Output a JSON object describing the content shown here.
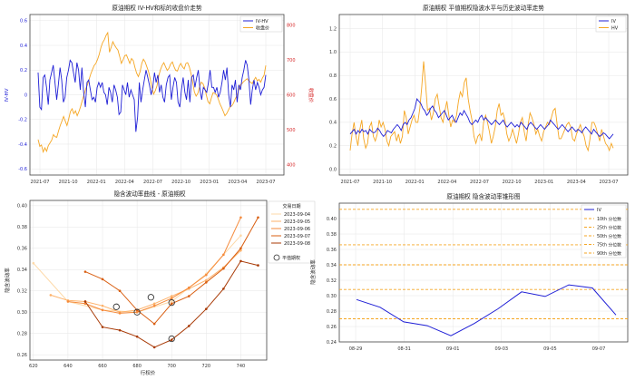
{
  "colors": {
    "blue": "#1f1fd6",
    "orange": "#f5a623",
    "red_axis": "#d62728",
    "grid": "#e6e6e6",
    "smile": [
      "#fdd9a8",
      "#fdb26a",
      "#f58a3b",
      "#d95f12",
      "#a83a06"
    ]
  },
  "chart_data": [
    {
      "type": "line",
      "title": "原油期权 IV-HV和标的收盘价走势",
      "xticks": [
        "2021-07",
        "2021-10",
        "2022-01",
        "2022-04",
        "2022-07",
        "2022-10",
        "2023-01",
        "2023-04",
        "2023-07"
      ],
      "ylabel": "IV-HV",
      "y2label": "收盘价",
      "ylim": [
        -0.65,
        0.65
      ],
      "yticks": [
        "-0.6",
        "-0.4",
        "-0.2",
        "0",
        "0.2",
        "0.4",
        "0.6"
      ],
      "y2lim": [
        370,
        830
      ],
      "y2ticks": [
        "400",
        "500",
        "600",
        "700",
        "800"
      ],
      "legend": [
        "IV-HV",
        "收盘价"
      ],
      "series": [
        {
          "name": "IV-HV",
          "values": [
            0.18,
            -0.1,
            -0.12,
            0.14,
            0.16,
            0.06,
            -0.08,
            0.12,
            0.18,
            0.24,
            0.1,
            -0.04,
            0.08,
            0.22,
            0.12,
            -0.06,
            -0.02,
            0.14,
            0.2,
            0.28,
            0.26,
            0.18,
            0.1,
            0.26,
            0.2,
            0.04,
            0.22,
            0.02,
            -0.1,
            0.1,
            0.12,
            0.04,
            -0.04,
            -0.02,
            -0.06,
            0.06,
            0.1,
            0.06,
            0.1,
            0.02,
            0.0,
            -0.08,
            0.06,
            0.02,
            -0.06,
            0.08,
            0.04,
            -0.02,
            -0.16,
            -0.14,
            0.08,
            0.04,
            0.0,
            0.1,
            -0.02,
            0.04,
            0.0,
            -0.04,
            -0.3,
            -0.18,
            0.1,
            -0.06,
            0.04,
            0.12,
            0.2,
            0.14,
            0.08,
            0.0,
            0.06,
            0.18,
            0.1,
            0.16,
            0.02,
            0.08,
            -0.02,
            -0.06,
            0.08,
            0.14,
            0.16,
            -0.04,
            0.06,
            0.14,
            0.1,
            -0.06,
            -0.1,
            0.04,
            0.14,
            0.02,
            -0.04,
            0.12,
            -0.06,
            0.14,
            0.16,
            0.06,
            0.14,
            0.2,
            0.04,
            -0.04,
            0.06,
            0.04,
            0.02,
            0.1,
            0.2,
            0.06,
            0.06,
            0.02,
            0.06,
            -0.02,
            0.02,
            0.1,
            0.2,
            0.12,
            0.22,
            0.0,
            -0.1,
            0.08,
            0.04,
            0.12,
            -0.06,
            0.08,
            0.04,
            0.14,
            0.2,
            0.28,
            0.24,
            0.12,
            -0.08,
            0.04,
            0.12,
            0.04,
            0.1,
            0.06,
            0.0,
            0.04,
            0.06,
            0.16
          ]
        },
        {
          "name": "收盘价",
          "values": [
            472,
            452,
            456,
            436,
            448,
            438,
            454,
            462,
            470,
            486,
            480,
            478,
            496,
            512,
            524,
            538,
            524,
            512,
            530,
            552,
            560,
            546,
            554,
            540,
            552,
            566,
            584,
            600,
            616,
            628,
            644,
            660,
            672,
            684,
            690,
            702,
            716,
            736,
            750,
            758,
            770,
            778,
            722,
            736,
            752,
            742,
            734,
            728,
            710,
            690,
            700,
            712,
            714,
            702,
            690,
            704,
            698,
            678,
            662,
            652,
            666,
            690,
            702,
            694,
            680,
            666,
            646,
            620,
            602,
            612,
            626,
            654,
            672,
            684,
            692,
            680,
            670,
            676,
            688,
            694,
            680,
            670,
            668,
            682,
            690,
            680,
            674,
            690,
            692,
            680,
            660,
            634,
            608,
            596,
            604,
            622,
            636,
            632,
            620,
            600,
            580,
            574,
            592,
            606,
            604,
            600,
            588,
            574,
            564,
            552,
            540,
            546,
            556,
            566,
            568,
            576,
            588,
            598,
            612,
            628,
            632,
            638,
            642,
            646,
            640,
            636,
            632,
            642,
            650,
            640,
            644,
            636,
            648,
            656,
            684
          ]
        }
      ]
    },
    {
      "type": "line",
      "title": "原油期权 平值期权隐波水平与历史波动率走势",
      "xticks": [
        "2021-07",
        "2021-10",
        "2022-01",
        "2022-04",
        "2022-07",
        "2022-10",
        "2023-01",
        "2023-04",
        "2023-07"
      ],
      "ylim": [
        -0.05,
        1.32
      ],
      "yticks": [
        "0.0",
        "0.2",
        "0.4",
        "0.6",
        "0.8",
        "1.0",
        "1.2"
      ],
      "legend": [
        "IV",
        "HV"
      ],
      "series": [
        {
          "name": "IV",
          "values": [
            0.3,
            0.32,
            0.34,
            0.3,
            0.33,
            0.31,
            0.34,
            0.32,
            0.33,
            0.3,
            0.34,
            0.32,
            0.31,
            0.32,
            0.35,
            0.33,
            0.3,
            0.28,
            0.3,
            0.33,
            0.32,
            0.31,
            0.34,
            0.36,
            0.38,
            0.36,
            0.33,
            0.38,
            0.4,
            0.38,
            0.42,
            0.44,
            0.48,
            0.52,
            0.6,
            0.58,
            0.56,
            0.52,
            0.5,
            0.46,
            0.48,
            0.52,
            0.54,
            0.5,
            0.48,
            0.44,
            0.46,
            0.48,
            0.5,
            0.46,
            0.42,
            0.44,
            0.46,
            0.42,
            0.4,
            0.44,
            0.48,
            0.46,
            0.5,
            0.47,
            0.44,
            0.4,
            0.38,
            0.4,
            0.42,
            0.4,
            0.44,
            0.46,
            0.42,
            0.44,
            0.42,
            0.4,
            0.38,
            0.4,
            0.42,
            0.4,
            0.38,
            0.4,
            0.42,
            0.38,
            0.36,
            0.38,
            0.4,
            0.38,
            0.36,
            0.38,
            0.36,
            0.4,
            0.38,
            0.36,
            0.34,
            0.38,
            0.4,
            0.38,
            0.36,
            0.34,
            0.36,
            0.38,
            0.36,
            0.34,
            0.36,
            0.38,
            0.42,
            0.4,
            0.38,
            0.36,
            0.34,
            0.36,
            0.38,
            0.36,
            0.34,
            0.32,
            0.34,
            0.36,
            0.34,
            0.32,
            0.34,
            0.33,
            0.31,
            0.34,
            0.36,
            0.34,
            0.32,
            0.3,
            0.34,
            0.32,
            0.3,
            0.28,
            0.29,
            0.31,
            0.3,
            0.28,
            0.26,
            0.28,
            0.3
          ]
        },
        {
          "name": "HV",
          "values": [
            0.16,
            0.3,
            0.4,
            0.28,
            0.2,
            0.34,
            0.42,
            0.26,
            0.18,
            0.22,
            0.36,
            0.4,
            0.28,
            0.24,
            0.3,
            0.42,
            0.36,
            0.4,
            0.34,
            0.24,
            0.2,
            0.28,
            0.3,
            0.32,
            0.24,
            0.3,
            0.22,
            0.28,
            0.5,
            0.44,
            0.3,
            0.36,
            0.42,
            0.46,
            0.4,
            0.4,
            0.52,
            0.7,
            0.92,
            0.72,
            0.5,
            0.52,
            0.42,
            0.48,
            0.6,
            0.64,
            0.54,
            0.44,
            0.4,
            0.5,
            0.58,
            0.46,
            0.36,
            0.42,
            0.4,
            0.46,
            0.58,
            0.66,
            0.62,
            0.74,
            0.78,
            0.6,
            0.5,
            0.42,
            0.28,
            0.22,
            0.28,
            0.3,
            0.24,
            0.4,
            0.46,
            0.4,
            0.32,
            0.22,
            0.28,
            0.36,
            0.5,
            0.56,
            0.46,
            0.48,
            0.42,
            0.3,
            0.24,
            0.28,
            0.34,
            0.28,
            0.22,
            0.3,
            0.4,
            0.44,
            0.32,
            0.24,
            0.38,
            0.48,
            0.44,
            0.38,
            0.3,
            0.34,
            0.28,
            0.24,
            0.32,
            0.36,
            0.4,
            0.38,
            0.44,
            0.5,
            0.52,
            0.38,
            0.26,
            0.26,
            0.3,
            0.34,
            0.38,
            0.4,
            0.36,
            0.26,
            0.24,
            0.3,
            0.34,
            0.38,
            0.32,
            0.28,
            0.2,
            0.16,
            0.26,
            0.4,
            0.4,
            0.36,
            0.3,
            0.24,
            0.34,
            0.28,
            0.22,
            0.2,
            0.16,
            0.22,
            0.18
          ]
        }
      ]
    },
    {
      "type": "line",
      "title": "隐含波动率曲线 - 原油期权",
      "xlabel": "行权价",
      "ylabel": "隐含波动率",
      "xlim": [
        618,
        755
      ],
      "xticks": [
        620,
        640,
        660,
        680,
        700,
        720,
        740
      ],
      "ylim": [
        0.255,
        0.405
      ],
      "yticks": [
        0.26,
        0.28,
        0.3,
        0.32,
        0.34,
        0.36,
        0.38,
        0.4
      ],
      "legend_title": "交易日期",
      "legend_marker": "平值期权",
      "series": [
        {
          "name": "2023-09-04",
          "x": [
            620,
            640,
            660,
            680,
            700,
            720,
            740
          ],
          "values": [
            0.346,
            0.31,
            0.302,
            0.3,
            0.31,
            0.336,
            0.372
          ]
        },
        {
          "name": "2023-09-05",
          "x": [
            630,
            640,
            650,
            660,
            670,
            680,
            690,
            700,
            710,
            720,
            730,
            740
          ],
          "values": [
            0.316,
            0.311,
            0.31,
            0.306,
            0.3,
            0.302,
            0.308,
            0.315,
            0.322,
            0.33,
            0.342,
            0.358
          ]
        },
        {
          "name": "2023-09-06",
          "x": [
            640,
            650,
            660,
            670,
            680,
            690,
            700,
            710,
            720,
            730,
            740
          ],
          "values": [
            0.31,
            0.308,
            0.302,
            0.299,
            0.3,
            0.306,
            0.313,
            0.323,
            0.335,
            0.354,
            0.389
          ]
        },
        {
          "name": "2023-09-07",
          "x": [
            650,
            660,
            670,
            680,
            690,
            700,
            710,
            720,
            730,
            740,
            750
          ],
          "values": [
            0.338,
            0.331,
            0.32,
            0.302,
            0.289,
            0.308,
            0.315,
            0.328,
            0.341,
            0.36,
            0.389
          ]
        },
        {
          "name": "2023-09-08",
          "x": [
            650,
            660,
            670,
            680,
            690,
            700,
            710,
            720,
            730,
            740,
            750
          ],
          "values": [
            0.31,
            0.286,
            0.283,
            0.277,
            0.267,
            0.274,
            0.287,
            0.303,
            0.322,
            0.348,
            0.344
          ]
        }
      ],
      "atm_markers": [
        {
          "x": 668,
          "y": 0.305
        },
        {
          "x": 680,
          "y": 0.3
        },
        {
          "x": 688,
          "y": 0.314
        },
        {
          "x": 700,
          "y": 0.309
        },
        {
          "x": 700,
          "y": 0.275
        }
      ]
    },
    {
      "type": "line",
      "title": "原油期权 隐含波动率锥形图",
      "ylabel": "隐含波动率",
      "xticks": [
        "08-29",
        "08-31",
        "09-01",
        "09-03",
        "09-05",
        "09-07"
      ],
      "ylim": [
        0.24,
        0.42
      ],
      "yticks": [
        0.24,
        0.26,
        0.28,
        0.3,
        0.32,
        0.34,
        0.36,
        0.38,
        0.4
      ],
      "series": [
        {
          "name": "IV",
          "values": [
            0.295,
            0.285,
            0.266,
            0.261,
            0.248,
            0.264,
            0.283,
            0.305,
            0.299,
            0.314,
            0.31,
            0.275
          ]
        }
      ],
      "percentile_lines": [
        {
          "name": "10th 分位数",
          "value": 0.27
        },
        {
          "name": "25th 分位数",
          "value": 0.308
        },
        {
          "name": "50th 分位数",
          "value": 0.34
        },
        {
          "name": "75th 分位数",
          "value": 0.366
        },
        {
          "name": "90th 分位数",
          "value": 0.412
        }
      ]
    }
  ]
}
